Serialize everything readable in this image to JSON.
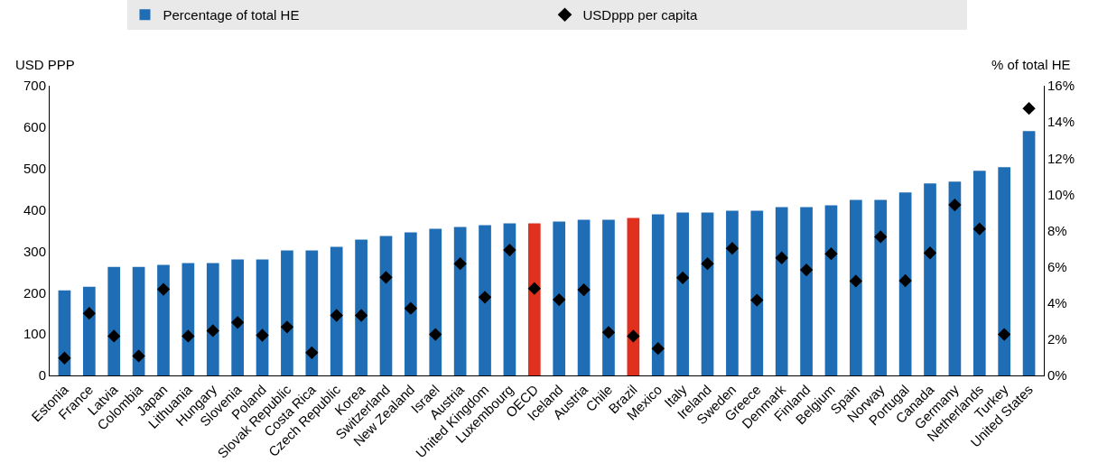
{
  "chart_data": {
    "type": "bar",
    "ylabel": "USD PPP",
    "y2label": "% of total HE",
    "legend": "top",
    "categories": [
      "Estonia",
      "France",
      "Latvia",
      "Colombia",
      "Japan",
      "Lithuania",
      "Hungary",
      "Slovenia",
      "Poland",
      "Slovak Republic",
      "Costa Rica",
      "Czech Republic",
      "Korea",
      "Switzerland",
      "New Zealand",
      "Israel",
      "Austria",
      "United Kingdom",
      "Luxembourg",
      "OECD",
      "Iceland",
      "Austria",
      "Chile",
      "Brazil",
      "Mexico",
      "Italy",
      "Ireland",
      "Sweden",
      "Greece",
      "Denmark",
      "Finland",
      "Belgium",
      "Spain",
      "Norway",
      "Portugal",
      "Canada",
      "Germany",
      "Netherlands",
      "Turkey",
      "United States"
    ],
    "ylim": [
      0,
      700
    ],
    "yticks": [
      0,
      100,
      200,
      300,
      400,
      500,
      600,
      700
    ],
    "y2lim": [
      0,
      16
    ],
    "y2ticks": [
      {
        "value": 0,
        "label": "0%"
      },
      {
        "value": 2,
        "label": "2%"
      },
      {
        "value": 4,
        "label": "4%"
      },
      {
        "value": 6,
        "label": "6%"
      },
      {
        "value": 8,
        "label": "8%"
      },
      {
        "value": 10,
        "label": "10%"
      },
      {
        "value": 12,
        "label": "12%"
      },
      {
        "value": 14,
        "label": "14%"
      },
      {
        "value": 16,
        "label": "16%"
      }
    ],
    "series": [
      {
        "name": "Percentage of total HE",
        "axis": "y2",
        "color": "#1f6db5",
        "colors": [
          "#1f6db5",
          "#1f6db5",
          "#1f6db5",
          "#1f6db5",
          "#1f6db5",
          "#1f6db5",
          "#1f6db5",
          "#1f6db5",
          "#1f6db5",
          "#1f6db5",
          "#1f6db5",
          "#1f6db5",
          "#1f6db5",
          "#1f6db5",
          "#1f6db5",
          "#1f6db5",
          "#1f6db5",
          "#1f6db5",
          "#1f6db5",
          "#e0301e",
          "#1f6db5",
          "#1f6db5",
          "#1f6db5",
          "#e0301e",
          "#1f6db5",
          "#1f6db5",
          "#1f6db5",
          "#1f6db5",
          "#1f6db5",
          "#1f6db5",
          "#1f6db5",
          "#1f6db5",
          "#1f6db5",
          "#1f6db5",
          "#1f6db5",
          "#1f6db5",
          "#1f6db5",
          "#1f6db5",
          "#1f6db5",
          "#1f6db5"
        ],
        "values": [
          4.7,
          4.9,
          6.0,
          6.0,
          6.1,
          6.2,
          6.2,
          6.4,
          6.4,
          6.9,
          6.9,
          7.1,
          7.5,
          7.7,
          7.9,
          8.1,
          8.2,
          8.3,
          8.4,
          8.4,
          8.5,
          8.6,
          8.6,
          8.7,
          8.9,
          9.0,
          9.0,
          9.1,
          9.1,
          9.3,
          9.3,
          9.4,
          9.7,
          9.7,
          10.1,
          10.6,
          10.7,
          11.3,
          11.5,
          13.5
        ]
      },
      {
        "name": "USDppp per capita",
        "type": "scatter",
        "axis": "y",
        "marker": "diamond",
        "color": "#000000",
        "values": [
          42,
          150,
          95,
          47,
          208,
          95,
          108,
          128,
          97,
          117,
          55,
          145,
          145,
          237,
          162,
          99,
          270,
          189,
          303,
          210,
          183,
          207,
          104,
          95,
          65,
          236,
          270,
          307,
          182,
          284,
          255,
          294,
          228,
          335,
          229,
          296,
          412,
          354,
          99,
          645
        ]
      }
    ]
  }
}
